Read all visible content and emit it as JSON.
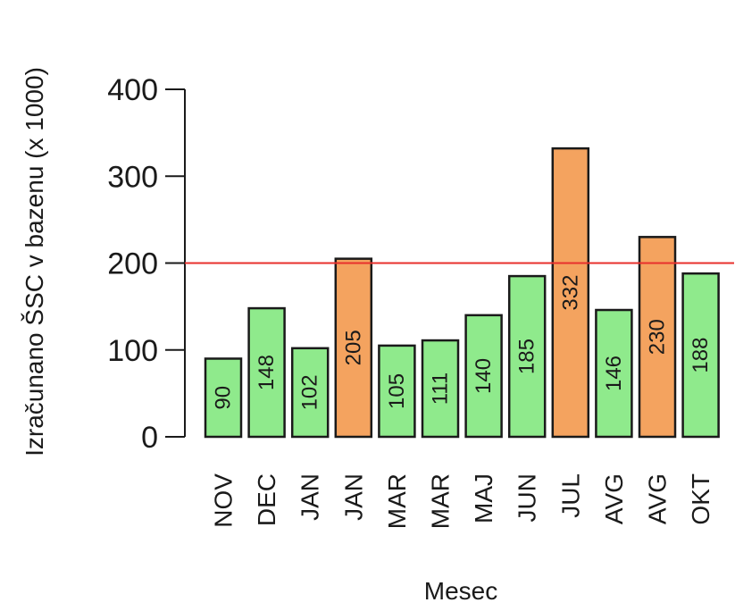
{
  "chart_data": {
    "type": "bar",
    "title": "",
    "xlabel": "Mesec",
    "ylabel": "Izračunano ŠSC v bazenu (x 1000)",
    "categories": [
      "NOV",
      "DEC",
      "JAN",
      "JAN",
      "MAR",
      "MAR",
      "MAJ",
      "JUN",
      "JUL",
      "AVG",
      "AVG",
      "OKT"
    ],
    "values": [
      90,
      148,
      102,
      205,
      105,
      111,
      140,
      185,
      332,
      146,
      230,
      188
    ],
    "value_labels": [
      "90",
      "148",
      "102",
      "205",
      "105",
      "111",
      "140",
      "185",
      "332",
      "146",
      "230",
      "188"
    ],
    "ylim": [
      0,
      400
    ],
    "yticks": [
      0,
      100,
      200,
      300,
      400
    ],
    "ytick_labels": [
      "0",
      "100",
      "200",
      "300",
      "400"
    ],
    "threshold": 200,
    "grid": false,
    "colors": {
      "below_threshold": "#8fea8c",
      "above_threshold": "#f4a35f",
      "threshold_line": "#e8302c",
      "bar_outline": "#1a1a1a"
    }
  }
}
